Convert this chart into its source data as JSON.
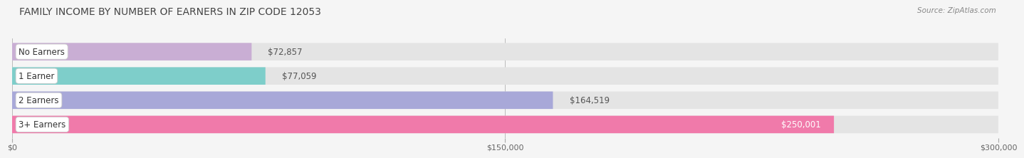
{
  "title": "FAMILY INCOME BY NUMBER OF EARNERS IN ZIP CODE 12053",
  "source": "Source: ZipAtlas.com",
  "categories": [
    "No Earners",
    "1 Earner",
    "2 Earners",
    "3+ Earners"
  ],
  "values": [
    72857,
    77059,
    164519,
    250001
  ],
  "bar_colors": [
    "#c9aed4",
    "#7ececa",
    "#a8a8d8",
    "#f07aaa"
  ],
  "bar_labels": [
    "$72,857",
    "$77,059",
    "$164,519",
    "$250,001"
  ],
  "label_inside": [
    false,
    false,
    false,
    true
  ],
  "x_max": 300000,
  "x_tick_labels": [
    "$0",
    "$150,000",
    "$300,000"
  ],
  "bg_color": "#f5f5f5",
  "bar_bg_color": "#e4e4e4",
  "title_fontsize": 10,
  "source_fontsize": 7.5,
  "label_fontsize": 8.5,
  "category_fontsize": 8.5
}
